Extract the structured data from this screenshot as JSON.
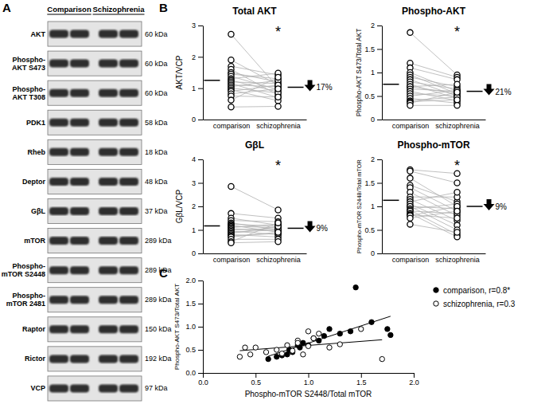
{
  "chart_data": [
    {
      "type": "blot",
      "panel": "A",
      "groups": [
        "Comparison",
        "Schizophrenia"
      ],
      "rows": [
        {
          "label": "AKT",
          "size": "60 kDa"
        },
        {
          "label": "Phospho-AKT S473",
          "size": "60 kDa"
        },
        {
          "label": "Phospho-AKT T308",
          "size": "60 kDa"
        },
        {
          "label": "PDK1",
          "size": "58 kDa"
        },
        {
          "label": "Rheb",
          "size": "18 kDa"
        },
        {
          "label": "Deptor",
          "size": "48 kDa"
        },
        {
          "label": "GβL",
          "size": "37 kDa"
        },
        {
          "label": "mTOR",
          "size": "289 kDa"
        },
        {
          "label": "Phospho-mTOR S2448",
          "size": "289 kDa"
        },
        {
          "label": "Phospho-mTOR 2481",
          "size": "289 kDa"
        },
        {
          "label": "Raptor",
          "size": "150 kDa"
        },
        {
          "label": "Rictor",
          "size": "192 kDa"
        },
        {
          "label": "VCP",
          "size": "97 kDa"
        }
      ]
    },
    {
      "type": "paired",
      "panel": "B",
      "title": "Total AKT",
      "y_label": "AKT/VCP",
      "categories": [
        "comparison",
        "schizophrenia"
      ],
      "ylim": [
        0,
        3
      ],
      "yticks": [
        0,
        1,
        2,
        3
      ],
      "values": [
        [
          2.72,
          1.02
        ],
        [
          1.9,
          1.1
        ],
        [
          1.7,
          1.42
        ],
        [
          1.6,
          0.78
        ],
        [
          1.5,
          1.2
        ],
        [
          1.45,
          1.3
        ],
        [
          1.38,
          0.95
        ],
        [
          1.3,
          1.48
        ],
        [
          1.25,
          0.88
        ],
        [
          1.2,
          1.15
        ],
        [
          1.15,
          0.7
        ],
        [
          1.1,
          1.05
        ],
        [
          1.05,
          1.25
        ],
        [
          1.0,
          0.85
        ],
        [
          0.95,
          0.6
        ],
        [
          0.9,
          1.1
        ],
        [
          0.82,
          0.98
        ],
        [
          0.75,
          0.72
        ],
        [
          0.62,
          1.35
        ],
        [
          0.4,
          0.42
        ]
      ],
      "means": [
        1.25,
        1.03
      ],
      "annotation": "*",
      "change": "17%"
    },
    {
      "type": "paired",
      "title": "Phospho-AKT",
      "y_label": "Phospho-AKT S473/Total AKT",
      "categories": [
        "comparison",
        "schizophrenia"
      ],
      "ylim": [
        0,
        2
      ],
      "yticks": [
        0,
        0.5,
        1,
        1.5,
        2
      ],
      "values": [
        [
          1.85,
          0.95
        ],
        [
          1.2,
          0.9
        ],
        [
          1.1,
          0.85
        ],
        [
          1.0,
          0.6
        ],
        [
          0.95,
          0.55
        ],
        [
          0.9,
          0.7
        ],
        [
          0.85,
          0.5
        ],
        [
          0.8,
          0.65
        ],
        [
          0.75,
          0.45
        ],
        [
          0.7,
          0.75
        ],
        [
          0.7,
          0.55
        ],
        [
          0.65,
          0.6
        ],
        [
          0.6,
          0.4
        ],
        [
          0.55,
          0.5
        ],
        [
          0.5,
          0.62
        ],
        [
          0.45,
          0.35
        ],
        [
          0.4,
          0.48
        ],
        [
          0.38,
          0.42
        ],
        [
          0.35,
          0.58
        ],
        [
          0.3,
          0.3
        ]
      ],
      "means": [
        0.75,
        0.6
      ],
      "annotation": "*",
      "change": "21%"
    },
    {
      "type": "paired",
      "title": "GβL",
      "y_label": "GβL/VCP",
      "categories": [
        "comparison",
        "schizophrenia"
      ],
      "ylim": [
        0,
        4
      ],
      "yticks": [
        0,
        1,
        2,
        3,
        4
      ],
      "values": [
        [
          2.85,
          1.85
        ],
        [
          1.7,
          1.5
        ],
        [
          1.5,
          1.2
        ],
        [
          1.4,
          1.35
        ],
        [
          1.3,
          1.0
        ],
        [
          1.25,
          1.15
        ],
        [
          1.2,
          0.9
        ],
        [
          1.15,
          1.1
        ],
        [
          1.1,
          1.25
        ],
        [
          1.05,
          0.95
        ],
        [
          1.0,
          1.05
        ],
        [
          0.95,
          0.8
        ],
        [
          0.9,
          1.0
        ],
        [
          0.85,
          1.15
        ],
        [
          0.8,
          0.7
        ],
        [
          0.75,
          0.85
        ],
        [
          0.7,
          0.9
        ],
        [
          0.6,
          0.6
        ],
        [
          0.5,
          1.3
        ],
        [
          0.45,
          0.5
        ]
      ],
      "means": [
        1.17,
        1.07
      ],
      "annotation": "*",
      "change": "9%"
    },
    {
      "type": "paired",
      "title": "Phospho-mTOR",
      "y_label": "Phospho-mTOR S2448/Total mTOR",
      "categories": [
        "comparison",
        "schizophrenia"
      ],
      "ylim": [
        0,
        2
      ],
      "yticks": [
        0,
        0.5,
        1,
        1.5,
        2
      ],
      "values": [
        [
          1.78,
          1.7
        ],
        [
          1.75,
          1.5
        ],
        [
          1.6,
          1.0
        ],
        [
          1.45,
          1.1
        ],
        [
          1.4,
          0.9
        ],
        [
          1.3,
          0.8
        ],
        [
          1.2,
          1.2
        ],
        [
          1.15,
          0.7
        ],
        [
          1.1,
          1.3
        ],
        [
          1.05,
          0.6
        ],
        [
          1.0,
          0.95
        ],
        [
          1.0,
          0.5
        ],
        [
          0.95,
          1.05
        ],
        [
          0.92,
          0.4
        ],
        [
          0.9,
          0.85
        ],
        [
          0.85,
          0.35
        ],
        [
          0.82,
          0.75
        ],
        [
          0.8,
          1.0
        ],
        [
          0.75,
          0.9
        ],
        [
          0.62,
          0.45
        ]
      ],
      "means": [
        1.13,
        1.0
      ],
      "annotation": "*",
      "change": "9%"
    },
    {
      "type": "scatter",
      "panel": "C",
      "x_label": "Phospho-mTOR S2448/Total mTOR",
      "y_label": "Phospho-AKT S473/Total AKT",
      "xlim": [
        0,
        2
      ],
      "ylim": [
        0,
        2
      ],
      "xticks": [
        {
          "value": 0,
          "label": "0.0"
        },
        {
          "value": 0.5,
          "label": "0.5"
        },
        {
          "value": 1,
          "label": "1.0"
        },
        {
          "value": 1.5,
          "label": "1.5"
        },
        {
          "value": 2,
          "label": "2.0"
        }
      ],
      "yticks": [
        {
          "value": 0,
          "label": "0.0"
        },
        {
          "value": 0.5,
          "label": "0.5"
        },
        {
          "value": 1,
          "label": "1.0"
        },
        {
          "value": 1.5,
          "label": "1.5"
        },
        {
          "value": 2,
          "label": "2.0"
        }
      ],
      "legend": "right",
      "series": [
        {
          "name": "comparison, r=0.8*",
          "marker": "filled",
          "x": [
            1.45,
            1.75,
            1.78,
            1.6,
            1.4,
            1.3,
            1.2,
            1.15,
            1.1,
            1.05,
            1.0,
            0.95,
            0.92,
            0.9,
            0.85,
            0.82,
            0.8,
            0.75,
            0.7,
            0.62
          ],
          "values": [
            1.85,
            0.95,
            0.82,
            1.1,
            0.9,
            0.85,
            0.95,
            0.8,
            0.7,
            0.75,
            0.6,
            0.65,
            0.55,
            0.6,
            0.45,
            0.5,
            0.4,
            0.38,
            0.35,
            0.3
          ]
        },
        {
          "name": "schizophrenia, r=0.3",
          "marker": "open",
          "x": [
            1.7,
            1.5,
            1.0,
            1.1,
            0.9,
            0.8,
            1.2,
            0.7,
            1.3,
            0.6,
            0.95,
            0.5,
            1.05,
            0.4,
            0.85,
            0.35,
            0.75,
            1.0,
            0.9,
            0.45
          ],
          "values": [
            0.3,
            0.95,
            0.9,
            0.85,
            0.7,
            0.6,
            0.55,
            0.5,
            0.62,
            0.45,
            0.4,
            0.55,
            0.75,
            0.55,
            0.48,
            0.35,
            0.42,
            0.58,
            0.65,
            0.4
          ]
        }
      ]
    }
  ]
}
